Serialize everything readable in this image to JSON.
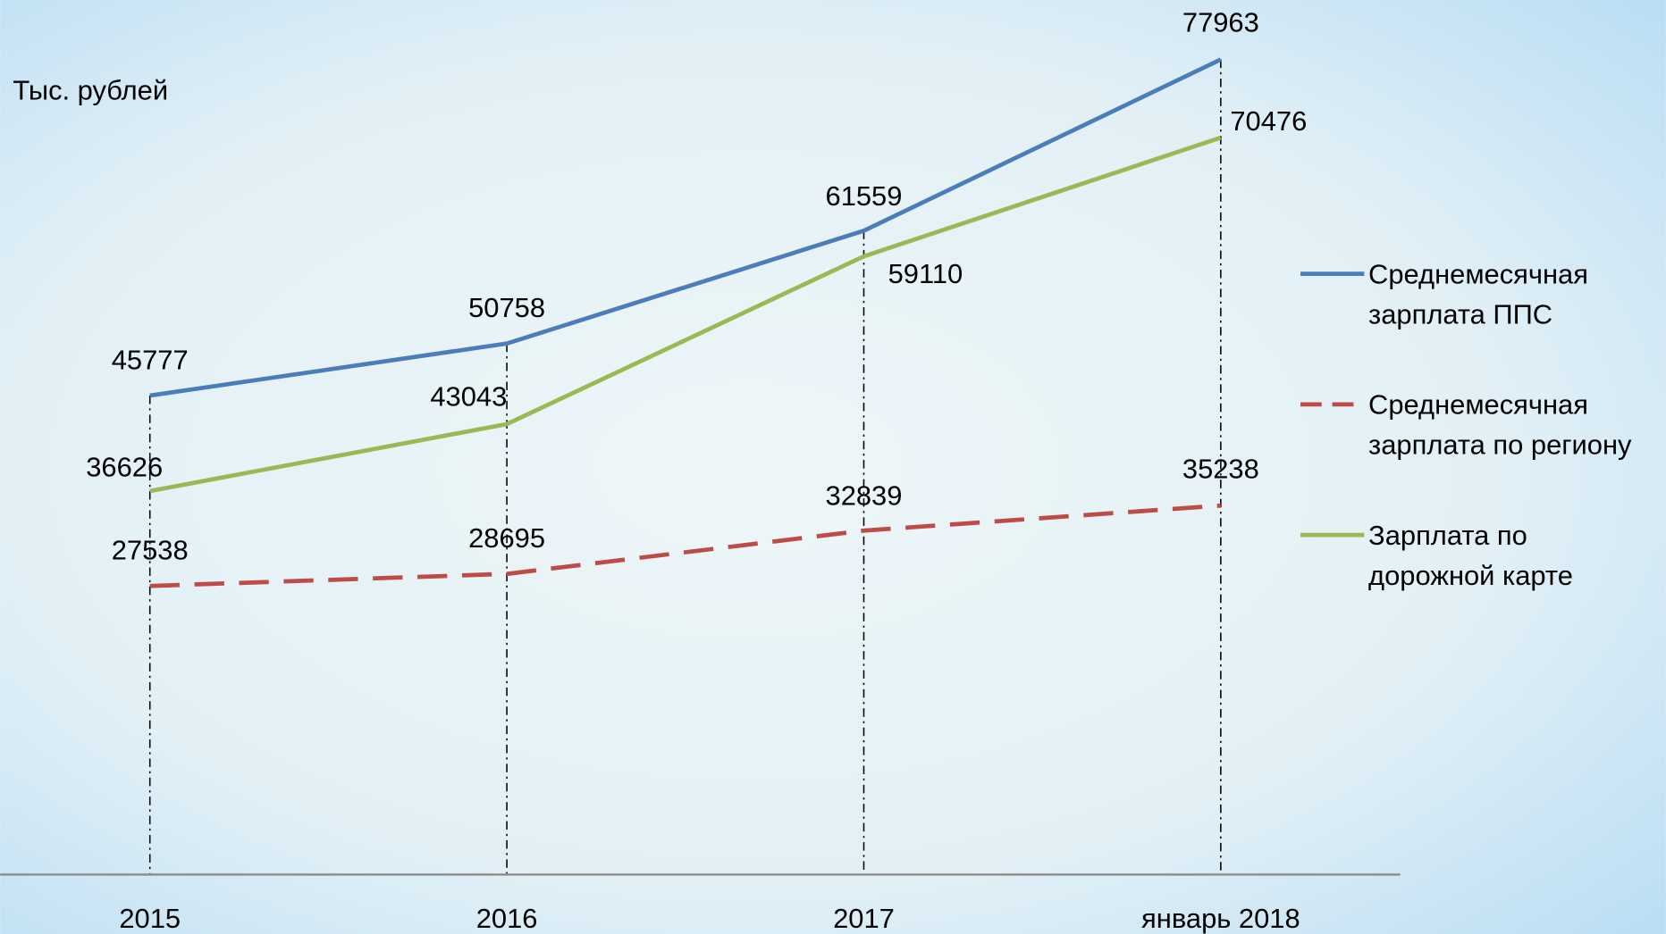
{
  "chart_data": {
    "type": "line",
    "ylabel": "Тыс. рублей",
    "categories": [
      "2015",
      "2016",
      "2017",
      "январь 2018"
    ],
    "series": [
      {
        "name": "Среднемесячная зарплата ППС",
        "color": "#4a7ebb",
        "dash": false,
        "values": [
          45777,
          50758,
          61559,
          77963
        ]
      },
      {
        "name": "Среднемесячная зарплата по региону",
        "color": "#be4b48",
        "dash": true,
        "values": [
          27538,
          28695,
          32839,
          35238
        ]
      },
      {
        "name": "Зарплата по дорожной карте",
        "color": "#98b954",
        "dash": false,
        "values": [
          36626,
          43043,
          59110,
          70476
        ]
      }
    ],
    "ylim": [
      0,
      80000
    ],
    "legend": "right"
  }
}
